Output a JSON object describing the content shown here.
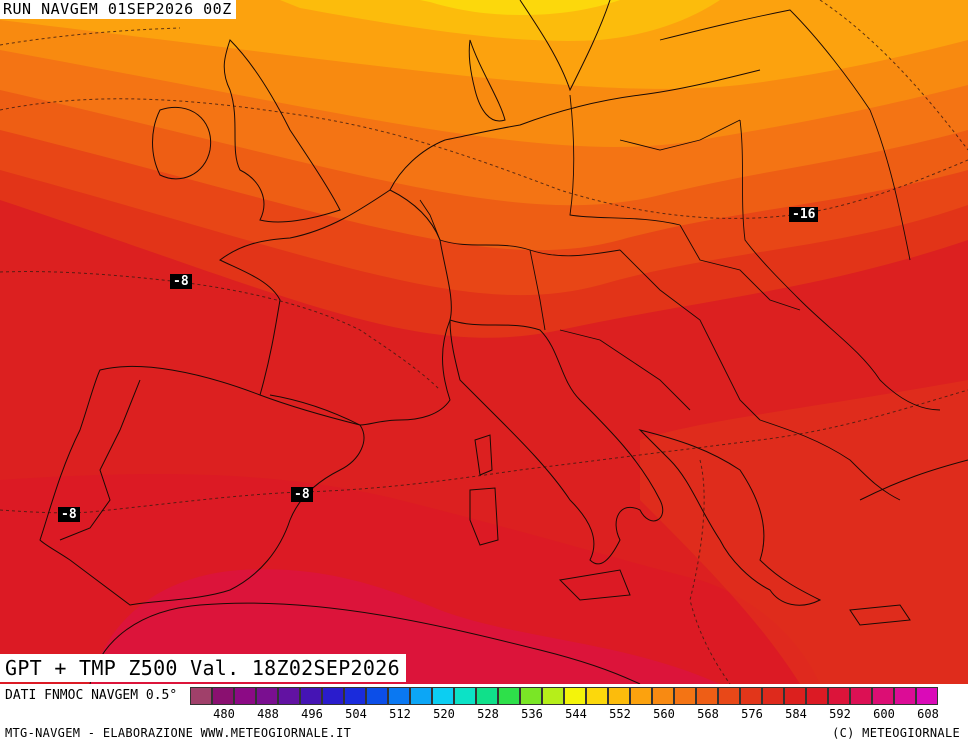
{
  "run_title": "RUN NAVGEM 01SEP2026 00Z",
  "map_title": "GPT + TMP Z500 Val. 18Z02SEP2026",
  "temperature_labels": [
    "-8",
    "-8",
    "-8",
    "-16"
  ],
  "legend": {
    "source": "DATI FNMOC NAVGEM 0.5°",
    "ticks": [
      "480",
      "488",
      "496",
      "504",
      "512",
      "520",
      "528",
      "536",
      "544",
      "552",
      "560",
      "568",
      "576",
      "584",
      "592",
      "600",
      "608"
    ],
    "colors": [
      "#a0406a",
      "#8a1070",
      "#8c0a85",
      "#7a0f90",
      "#6212a2",
      "#4514b4",
      "#2a1ccc",
      "#1a2bdc",
      "#0c4ee8",
      "#0a78f2",
      "#0ca6f6",
      "#0ccef2",
      "#0ce2c6",
      "#10e08a",
      "#2ee04a",
      "#7ae626",
      "#b6ee1a",
      "#f4f40a",
      "#fcd80c",
      "#fcbc0c",
      "#fca20e",
      "#f88a12",
      "#f47414",
      "#ee5e16",
      "#e84818",
      "#e2361a",
      "#de2a1c",
      "#dc201e",
      "#dc1a24",
      "#dc143a",
      "#dc1054",
      "#dc0e74",
      "#dc0c96",
      "#da0ab8"
    ]
  },
  "footer": {
    "left": "MTG-NAVGEM - ELABORAZIONE WWW.METEOGIORNALE.IT",
    "right": "(C) METEOGIORNALE"
  }
}
